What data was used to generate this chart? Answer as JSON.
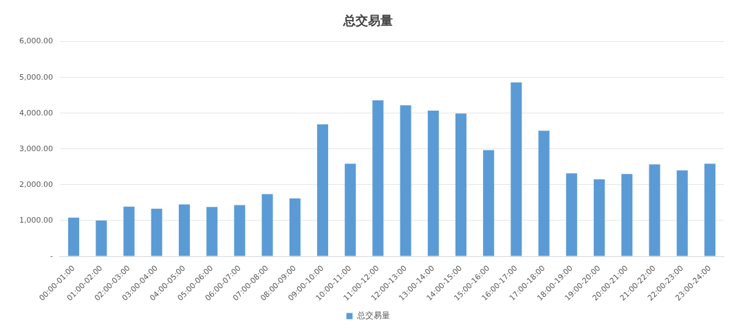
{
  "chart_data": {
    "type": "bar",
    "title": "总交易量",
    "categories": [
      "00:00-01:00",
      "01:00-02:00",
      "02:00-03:00",
      "03:00-04:00",
      "04:00-05:00",
      "05:00-06:00",
      "06:00-07:00",
      "07:00-08:00",
      "08:00-09:00",
      "09:00-10:00",
      "10:00-11:00",
      "11:00-12:00",
      "12:00-13:00",
      "13:00-14:00",
      "14:00-15:00",
      "15:00-16:00",
      "16:00-17:00",
      "17:00-18:00",
      "18:00-19:00",
      "19:00-20:00",
      "20:00-21:00",
      "21:00-22:00",
      "22:00-23:00",
      "23:00-24:00"
    ],
    "series": [
      {
        "name": "总交易量",
        "color": "#5b9bd5",
        "values": [
          1080,
          1000,
          1390,
          1330,
          1450,
          1380,
          1430,
          1740,
          1620,
          3690,
          2590,
          4360,
          4220,
          4070,
          3990,
          2970,
          4860,
          3510,
          2320,
          2150,
          2300,
          2570,
          2400,
          2590
        ]
      }
    ],
    "ylim": [
      0,
      6000
    ],
    "yticks": [
      {
        "value": 0,
        "label": "-"
      },
      {
        "value": 1000,
        "label": "1,000.00"
      },
      {
        "value": 2000,
        "label": "2,000.00"
      },
      {
        "value": 3000,
        "label": "3,000.00"
      },
      {
        "value": 4000,
        "label": "4,000.00"
      },
      {
        "value": 5000,
        "label": "5,000.00"
      },
      {
        "value": 6000,
        "label": "6,000.00"
      }
    ],
    "grid": "y",
    "legend": "bottom"
  }
}
